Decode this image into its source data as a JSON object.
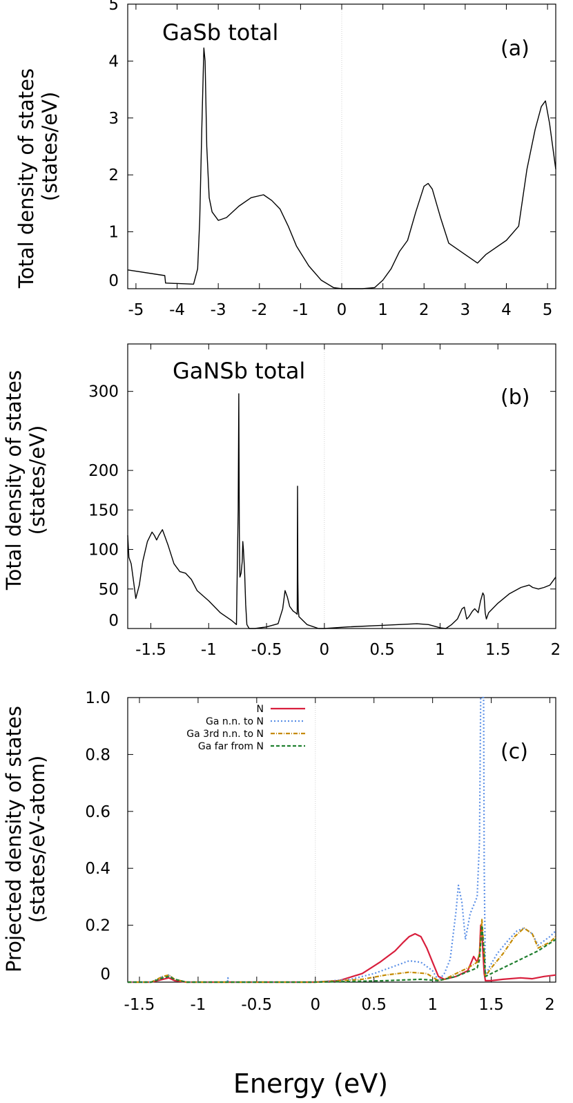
{
  "figure": {
    "xlabel": "Energy (eV)"
  },
  "chart_data": [
    {
      "id": "a",
      "type": "line",
      "title": "GaSb total",
      "panel_label": "(a)",
      "ylabel_line1": "Total density of states",
      "ylabel_line2": "(states/eV)",
      "xlim": [
        -5.2,
        5.2
      ],
      "ylim": [
        0,
        5
      ],
      "xticks": [
        -5,
        -4,
        -3,
        -2,
        -1,
        0,
        1,
        2,
        3,
        4,
        5
      ],
      "xtick_labels": [
        "-5",
        "-4",
        "-3",
        "-2",
        "-1",
        "0",
        "1",
        "2",
        "3",
        "4",
        "5"
      ],
      "yticks": [
        0,
        1,
        2,
        3,
        4,
        5
      ],
      "ytick_labels": [
        "0",
        "1",
        "2",
        "3",
        "4",
        "5"
      ],
      "zero_line": true,
      "series": [
        {
          "name": "GaSb total",
          "color": "#000000",
          "x": [
            -5.2,
            -4.3,
            -4.28,
            -3.6,
            -3.5,
            -3.45,
            -3.4,
            -3.35,
            -3.32,
            -3.28,
            -3.22,
            -3.15,
            -3.0,
            -2.8,
            -2.5,
            -2.2,
            -1.9,
            -1.7,
            -1.5,
            -1.3,
            -1.1,
            -0.8,
            -0.5,
            -0.2,
            0,
            0.5,
            0.8,
            1.0,
            1.2,
            1.4,
            1.6,
            1.8,
            2.0,
            2.1,
            2.2,
            2.4,
            2.6,
            3.0,
            3.3,
            3.5,
            4.0,
            4.3,
            4.5,
            4.7,
            4.85,
            4.95,
            5.05,
            5.2
          ],
          "y": [
            0.33,
            0.23,
            0.1,
            0.08,
            0.35,
            1.2,
            2.8,
            4.23,
            4.0,
            2.5,
            1.6,
            1.35,
            1.2,
            1.25,
            1.45,
            1.6,
            1.65,
            1.55,
            1.4,
            1.1,
            0.75,
            0.4,
            0.15,
            0.02,
            0,
            0,
            0.02,
            0.15,
            0.35,
            0.65,
            0.85,
            1.35,
            1.8,
            1.85,
            1.75,
            1.25,
            0.8,
            0.6,
            0.45,
            0.6,
            0.85,
            1.1,
            2.1,
            2.8,
            3.2,
            3.3,
            2.9,
            2.1
          ]
        }
      ]
    },
    {
      "id": "b",
      "type": "line",
      "title": "GaNSb total",
      "panel_label": "(b)",
      "ylabel_line1": "Total density of states",
      "ylabel_line2": "(states/eV)",
      "xlim": [
        -1.7,
        2.0
      ],
      "ylim": [
        0,
        360
      ],
      "xticks": [
        -1.5,
        -1,
        -0.5,
        0,
        0.5,
        1,
        1.5,
        2
      ],
      "xtick_labels": [
        "-1.5",
        "-1",
        "-0.5",
        "0",
        "0.5",
        "1",
        "1.5",
        "2"
      ],
      "yticks": [
        0,
        50,
        100,
        150,
        200,
        300
      ],
      "ytick_labels": [
        "0",
        "50",
        "100",
        "150",
        "200",
        "300"
      ],
      "zero_line": true,
      "series": [
        {
          "name": "GaNSb total",
          "color": "#000000",
          "x": [
            -1.7,
            -1.69,
            -1.67,
            -1.65,
            -1.63,
            -1.6,
            -1.57,
            -1.53,
            -1.49,
            -1.47,
            -1.45,
            -1.43,
            -1.4,
            -1.35,
            -1.3,
            -1.25,
            -1.2,
            -1.15,
            -1.1,
            -1.0,
            -0.9,
            -0.8,
            -0.76,
            -0.745,
            -0.74,
            -0.735,
            -0.73,
            -0.72,
            -0.71,
            -0.705,
            -0.7,
            -0.69,
            -0.68,
            -0.67,
            -0.65,
            -0.6,
            -0.5,
            -0.4,
            -0.36,
            -0.34,
            -0.32,
            -0.3,
            -0.27,
            -0.25,
            -0.235,
            -0.232,
            -0.229,
            -0.226,
            -0.22,
            -0.15,
            -0.05,
            0,
            0.2,
            0.5,
            0.8,
            0.9,
            1.0,
            1.05,
            1.1,
            1.15,
            1.19,
            1.21,
            1.23,
            1.25,
            1.28,
            1.3,
            1.33,
            1.35,
            1.37,
            1.38,
            1.39,
            1.4,
            1.42,
            1.5,
            1.6,
            1.7,
            1.77,
            1.8,
            1.85,
            1.9,
            1.95,
            2.0
          ],
          "y": [
            118,
            90,
            82,
            60,
            38,
            55,
            85,
            110,
            122,
            118,
            112,
            118,
            125,
            105,
            82,
            72,
            70,
            62,
            48,
            35,
            20,
            10,
            5,
            150,
            297,
            120,
            65,
            70,
            85,
            110,
            100,
            75,
            30,
            5,
            0,
            0,
            2,
            6,
            25,
            48,
            40,
            28,
            22,
            20,
            18,
            180,
            60,
            25,
            15,
            5,
            0,
            0,
            2,
            4,
            6,
            5,
            1,
            0,
            5,
            12,
            25,
            27,
            12,
            15,
            22,
            25,
            20,
            35,
            45,
            42,
            20,
            12,
            20,
            32,
            44,
            52,
            55,
            52,
            50,
            52,
            55,
            65
          ]
        }
      ]
    },
    {
      "id": "c",
      "type": "line",
      "title": "",
      "panel_label": "(c)",
      "ylabel_line1": "Projected density of states",
      "ylabel_line2": "(states/eV-atom)",
      "xlim": [
        -1.6,
        2.05
      ],
      "ylim": [
        0,
        1.0
      ],
      "xticks": [
        -1.5,
        -1,
        -0.5,
        0,
        0.5,
        1,
        1.5,
        2
      ],
      "xtick_labels": [
        "-1.5",
        "-1",
        "-0.5",
        "0",
        "0.5",
        "1",
        "1.5",
        "2"
      ],
      "yticks": [
        0,
        0.2,
        0.4,
        0.6,
        0.8,
        1.0
      ],
      "ytick_labels": [
        "0",
        "0.2",
        "0.4",
        "0.6",
        "0.8",
        "1.0"
      ],
      "zero_line": true,
      "series": [
        {
          "name": "N",
          "color": "#d81e3c",
          "dash": "",
          "x": [
            -1.6,
            -1.4,
            -1.3,
            -1.25,
            -1.2,
            -1.1,
            0,
            0.2,
            0.4,
            0.55,
            0.68,
            0.75,
            0.8,
            0.85,
            0.9,
            0.95,
            1.0,
            1.05,
            1.1,
            1.2,
            1.3,
            1.35,
            1.38,
            1.4,
            1.41,
            1.42,
            1.43,
            1.44,
            1.45,
            1.5,
            1.6,
            1.75,
            1.85,
            1.95,
            2.05
          ],
          "y": [
            0,
            0,
            0.01,
            0.015,
            0.005,
            0,
            0,
            0.005,
            0.03,
            0.07,
            0.11,
            0.14,
            0.16,
            0.17,
            0.16,
            0.12,
            0.07,
            0.02,
            0.01,
            0.02,
            0.04,
            0.09,
            0.07,
            0.1,
            0.2,
            0.18,
            0.1,
            0.03,
            0.005,
            0.005,
            0.01,
            0.015,
            0.012,
            0.02,
            0.025
          ]
        },
        {
          "name": "Ga n.n. to N",
          "color": "#5a8fe6",
          "dash": "2,3",
          "x": [
            -1.6,
            -1.4,
            -1.3,
            -1.25,
            -1.2,
            -1.1,
            -0.75,
            -0.745,
            -0.74,
            -0.6,
            0,
            0.3,
            0.5,
            0.7,
            0.8,
            0.9,
            1.0,
            1.05,
            1.1,
            1.15,
            1.2,
            1.22,
            1.25,
            1.28,
            1.32,
            1.38,
            1.4,
            1.41,
            1.42,
            1.425,
            1.43,
            1.435,
            1.44,
            1.45,
            1.48,
            1.55,
            1.65,
            1.72,
            1.78,
            1.85,
            1.9,
            2.0,
            2.05
          ],
          "y": [
            0,
            0,
            0.02,
            0.025,
            0.01,
            0,
            0,
            0.015,
            0,
            0,
            0,
            0.01,
            0.03,
            0.06,
            0.075,
            0.07,
            0.04,
            0.005,
            0.03,
            0.08,
            0.25,
            0.34,
            0.28,
            0.15,
            0.24,
            0.3,
            0.5,
            1.0,
            1.05,
            1.05,
            1.05,
            1.05,
            0.4,
            0.02,
            0.05,
            0.1,
            0.15,
            0.18,
            0.19,
            0.17,
            0.13,
            0.16,
            0.18
          ]
        },
        {
          "name": "Ga 3rd n.n. to N",
          "color": "#c58a00",
          "dash": "6,2,1,2",
          "x": [
            -1.6,
            -1.4,
            -1.3,
            -1.25,
            -1.2,
            -1.1,
            0,
            0.4,
            0.6,
            0.8,
            0.95,
            1.05,
            1.1,
            1.2,
            1.3,
            1.38,
            1.4,
            1.42,
            1.44,
            1.45,
            1.5,
            1.6,
            1.7,
            1.78,
            1.85,
            1.9,
            2.0,
            2.05
          ],
          "y": [
            0,
            0,
            0.02,
            0.025,
            0.01,
            0,
            0,
            0.01,
            0.025,
            0.035,
            0.03,
            0.005,
            0.01,
            0.03,
            0.05,
            0.07,
            0.1,
            0.22,
            0.1,
            0.02,
            0.05,
            0.1,
            0.16,
            0.19,
            0.17,
            0.12,
            0.14,
            0.16
          ]
        },
        {
          "name": "Ga far from N",
          "color": "#1f7f2f",
          "dash": "5,3",
          "x": [
            -1.6,
            -1.4,
            -1.3,
            -1.25,
            -1.2,
            -1.1,
            0,
            0.6,
            0.9,
            1.05,
            1.2,
            1.38,
            1.4,
            1.42,
            1.44,
            1.45,
            1.5,
            1.7,
            1.9,
            2.05
          ],
          "y": [
            0,
            0,
            0.015,
            0.02,
            0.01,
            0,
            0,
            0.005,
            0.01,
            0.005,
            0.02,
            0.05,
            0.08,
            0.2,
            0.1,
            0.02,
            0.03,
            0.07,
            0.11,
            0.15
          ]
        }
      ]
    }
  ]
}
